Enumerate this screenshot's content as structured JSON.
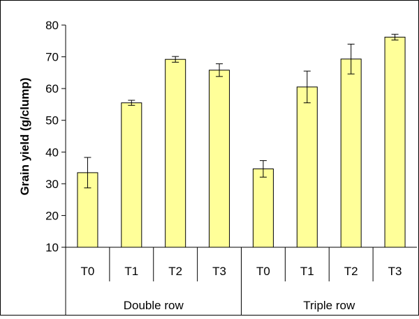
{
  "chart_data": {
    "type": "bar",
    "title": "",
    "xlabel": "",
    "ylabel": "Grain yield (g/clump)",
    "ylim": [
      10,
      80
    ],
    "yticks": [
      10,
      20,
      30,
      40,
      50,
      60,
      70,
      80
    ],
    "grid": false,
    "legend": "none",
    "groups": [
      {
        "label": "Double row",
        "categories": [
          "T0",
          "T1",
          "T2",
          "T3"
        ]
      },
      {
        "label": "Triple row",
        "categories": [
          "T0",
          "T1",
          "T2",
          "T3"
        ]
      }
    ],
    "values": [
      33.5,
      55.5,
      69.2,
      65.8,
      34.7,
      60.5,
      69.3,
      76.2
    ],
    "errors": [
      4.8,
      0.8,
      0.9,
      2.0,
      2.6,
      5.0,
      4.7,
      0.9
    ],
    "colors": {
      "bar_fill": "#ffff99",
      "bar_stroke": "#000000",
      "axis": "#000000"
    }
  }
}
